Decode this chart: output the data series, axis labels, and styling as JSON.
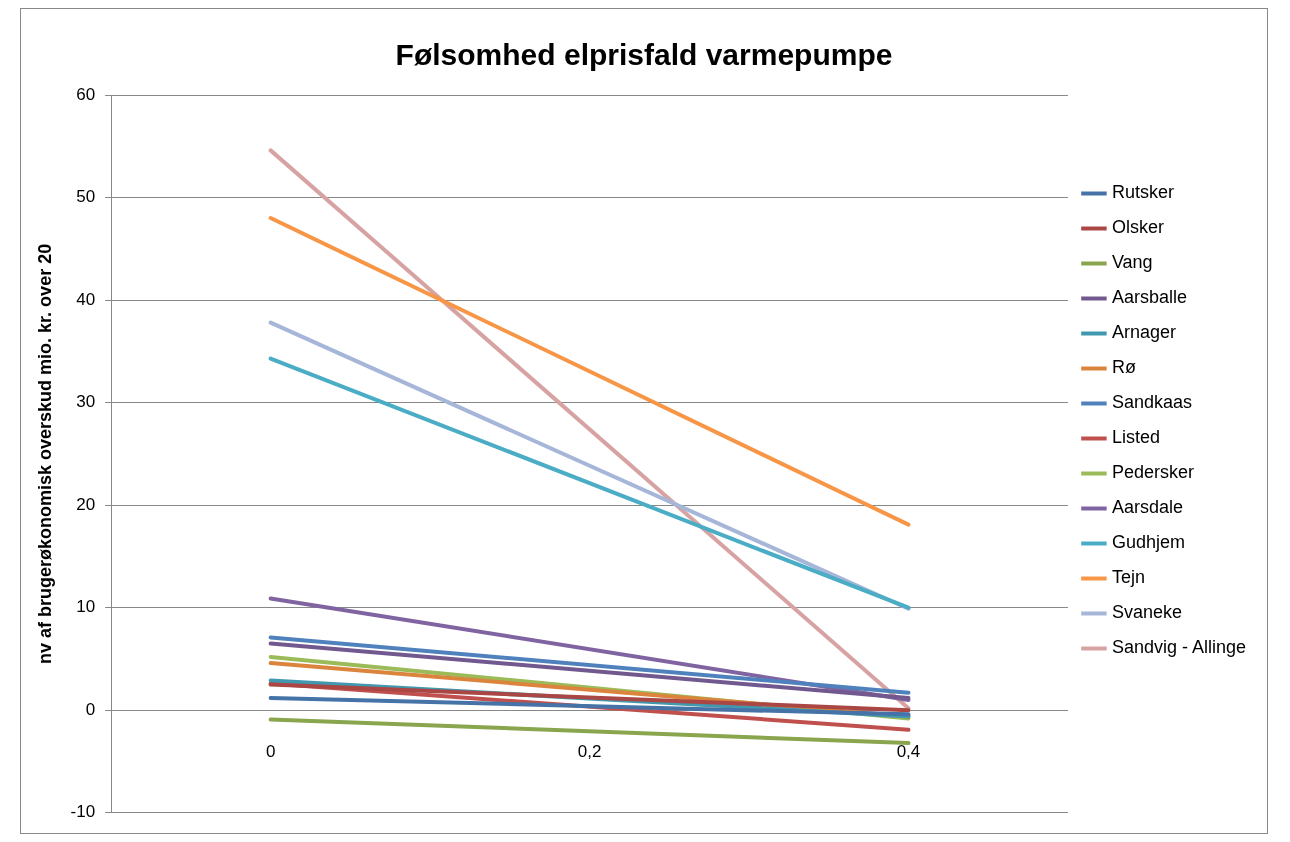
{
  "chart_data": {
    "type": "line",
    "title": "Følsomhed elprisfald varmepumpe",
    "ylabel": "nv af brugerøkonomisk overskud mio. kr. over 20",
    "x": [
      0,
      0.4
    ],
    "xlim": [
      -0.1,
      0.5
    ],
    "xticks": [
      {
        "value": 0,
        "label": "0"
      },
      {
        "value": 0.2,
        "label": "0,2"
      },
      {
        "value": 0.4,
        "label": "0,4"
      }
    ],
    "ylim": [
      -10,
      60
    ],
    "yticks": [
      -10,
      0,
      10,
      20,
      30,
      40,
      50,
      60
    ],
    "grid": "y",
    "legend": "right",
    "marker": "none",
    "line_style": "solid",
    "series": [
      {
        "name": "Rutsker",
        "color": "#4572a7",
        "values": [
          1.2,
          -0.4
        ]
      },
      {
        "name": "Olsker",
        "color": "#aa4643",
        "values": [
          2.5,
          0
        ]
      },
      {
        "name": "Vang",
        "color": "#89a54e",
        "values": [
          -0.9,
          -3.2
        ]
      },
      {
        "name": "Aarsballe",
        "color": "#71588f",
        "values": [
          6.5,
          1.2
        ]
      },
      {
        "name": "Arnager",
        "color": "#4198af",
        "values": [
          2.9,
          -0.6
        ]
      },
      {
        "name": "Rø",
        "color": "#db843d",
        "values": [
          4.6,
          -0.6
        ]
      },
      {
        "name": "Sandkaas",
        "color": "#4f81bd",
        "values": [
          7.1,
          1.7
        ]
      },
      {
        "name": "Listed",
        "color": "#c0504d",
        "values": [
          2.6,
          -1.9
        ]
      },
      {
        "name": "Pedersker",
        "color": "#9bbb59",
        "values": [
          5.2,
          -0.8
        ]
      },
      {
        "name": "Aarsdale",
        "color": "#8064a2",
        "values": [
          10.9,
          1.0
        ]
      },
      {
        "name": "Gudhjem",
        "color": "#4bacc6",
        "values": [
          34.3,
          10
        ]
      },
      {
        "name": "Tejn",
        "color": "#f79646",
        "values": [
          48,
          18.1
        ]
      },
      {
        "name": "Svaneke",
        "color": "#a5b6d8",
        "values": [
          37.8,
          9.9
        ]
      },
      {
        "name": "Sandvig - Allinge",
        "color": "#d7a3a2",
        "values": [
          54.6,
          0.2
        ]
      }
    ]
  }
}
